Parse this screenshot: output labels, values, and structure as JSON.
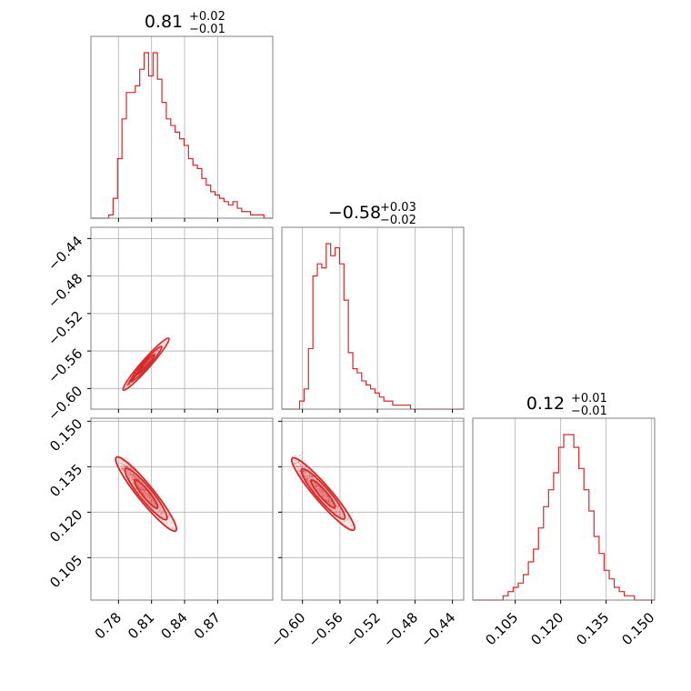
{
  "chart_data": {
    "type": "corner",
    "color": "#d62728",
    "parameters": [
      {
        "median": "0.81",
        "plus": "+0.02",
        "minus": "−0.01",
        "range": [
          0.755,
          0.92
        ],
        "ticks": [
          0.78,
          0.81,
          0.84,
          0.87
        ],
        "tick_labels": [
          "0.78",
          "0.81",
          "0.84",
          "0.87"
        ],
        "hist_edges": [
          0.755,
          0.92
        ],
        "hist": [
          0,
          0,
          0,
          0,
          1,
          6,
          18,
          30,
          38,
          38,
          40,
          45,
          50,
          43,
          50,
          42,
          35,
          30,
          28,
          26,
          24,
          22,
          18,
          16,
          15,
          12,
          10,
          8,
          7,
          6,
          5,
          4,
          5,
          3,
          2,
          2,
          1,
          1,
          1,
          0,
          0
        ]
      },
      {
        "median": "−0.58",
        "plus": "+0.03",
        "minus": "−0.02",
        "range": [
          -0.622,
          -0.428
        ],
        "ticks": [
          -0.6,
          -0.56,
          -0.52,
          -0.48,
          -0.44
        ],
        "tick_labels": [
          "−0.60",
          "−0.56",
          "−0.52",
          "−0.48",
          "−0.44"
        ],
        "hist": [
          0,
          0,
          0,
          0,
          2,
          5,
          15,
          33,
          36,
          35,
          41,
          38,
          40,
          36,
          27,
          14,
          10,
          9,
          7,
          6,
          5,
          4,
          3,
          2,
          2,
          1,
          1,
          1,
          1,
          0,
          0,
          0,
          0,
          0,
          0,
          0,
          0,
          0,
          0,
          0,
          0
        ]
      },
      {
        "median": "0.12",
        "plus": "+0.01",
        "minus": "−0.01",
        "range": [
          0.091,
          0.151
        ],
        "ticks": [
          0.105,
          0.12,
          0.135,
          0.15
        ],
        "tick_labels": [
          "0.105",
          "0.120",
          "0.135",
          "0.150"
        ],
        "hist": [
          0,
          0,
          0,
          0,
          0,
          0,
          1,
          2,
          3,
          4,
          6,
          9,
          12,
          17,
          22,
          26,
          30,
          36,
          39,
          39,
          36,
          31,
          26,
          21,
          15,
          11,
          7,
          5,
          3,
          2,
          1,
          1,
          0,
          0,
          0,
          0
        ]
      }
    ],
    "axis_labels": {
      "y_rows": [
        [
          "−0.44",
          "−0.48",
          "−0.52",
          "−0.56",
          "−0.60"
        ],
        [
          "0.150",
          "0.135",
          "0.120",
          "0.105"
        ]
      ]
    }
  }
}
